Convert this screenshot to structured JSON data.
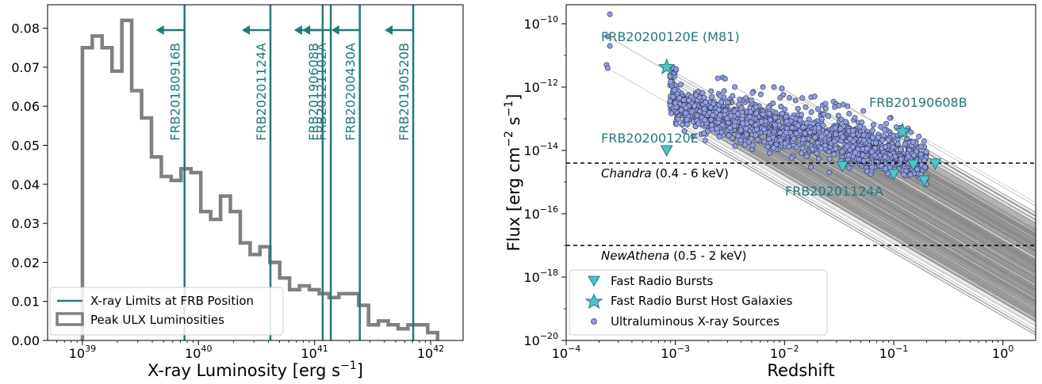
{
  "chart_data": [
    {
      "type": "histogram",
      "xlabel": "X-ray Luminosity [erg s",
      "xlabel_sup": "−1",
      "xlabel_end": "]",
      "xscale": "log",
      "xlim_log10": [
        38.7,
        42.28
      ],
      "ylim": [
        0,
        0.086
      ],
      "xticks": [
        {
          "log": 39,
          "base": "10",
          "exp": "39"
        },
        {
          "log": 40,
          "base": "10",
          "exp": "40"
        },
        {
          "log": 41,
          "base": "10",
          "exp": "41"
        },
        {
          "log": 42,
          "base": "10",
          "exp": "42"
        }
      ],
      "yticks": [
        "0.00",
        "0.01",
        "0.02",
        "0.03",
        "0.04",
        "0.05",
        "0.06",
        "0.07",
        "0.08"
      ],
      "ytick_values": [
        0,
        0.01,
        0.02,
        0.03,
        0.04,
        0.05,
        0.06,
        0.07,
        0.08
      ],
      "histogram": {
        "name": "Peak ULX Luminosities",
        "bin_edges_log10": [
          39.0,
          39.085,
          39.17,
          39.255,
          39.34,
          39.425,
          39.51,
          39.595,
          39.68,
          39.765,
          39.85,
          39.935,
          40.02,
          40.105,
          40.19,
          40.275,
          40.36,
          40.445,
          40.53,
          40.615,
          40.7,
          40.785,
          40.87,
          40.955,
          41.04,
          41.125,
          41.21,
          41.295,
          41.38,
          41.465,
          41.55,
          41.635,
          41.72,
          41.805,
          41.89,
          41.975
        ],
        "counts": [
          0.075,
          0.078,
          0.075,
          0.069,
          0.082,
          0.064,
          0.057,
          0.047,
          0.042,
          0.041,
          0.044,
          0.043,
          0.033,
          0.031,
          0.037,
          0.033,
          0.025,
          0.022,
          0.024,
          0.02,
          0.016,
          0.013,
          0.014,
          0.013,
          0.012,
          0.011,
          0.012,
          0.012,
          0.009,
          0.004,
          0.005,
          0.004,
          0.003,
          0.004,
          0.004,
          0.002
        ],
        "color": "#808080"
      },
      "frb_limits": [
        {
          "name": "FRB20180916B",
          "log": 39.88
        },
        {
          "name": "FRB20201124A",
          "log": 40.62
        },
        {
          "name": "FRB20190608B",
          "log": 41.07
        },
        {
          "name": "FRB20121102A",
          "log": 41.14
        },
        {
          "name": "FRB20200430A",
          "log": 41.39
        },
        {
          "name": "FRB20190520B",
          "log": 41.85
        }
      ],
      "frb_color": "#1f7a7a",
      "legend": {
        "position": "lower-left",
        "entries": [
          "X-ray Limits at FRB Position",
          "Peak ULX Luminosities"
        ]
      }
    },
    {
      "type": "scatter",
      "xlabel": "Redshift",
      "ylabel": "Flux [erg cm",
      "ylabel_sup1": "−2",
      "ylabel_mid": " s",
      "ylabel_sup2": "−1",
      "ylabel_end": "]",
      "xscale": "log",
      "yscale": "log",
      "xlim_log10": [
        -4,
        0.3
      ],
      "ylim_log10": [
        -20,
        -9.4
      ],
      "xticks": [
        {
          "log": -4,
          "base": "10",
          "exp": "−4"
        },
        {
          "log": -3,
          "base": "10",
          "exp": "−3"
        },
        {
          "log": -2,
          "base": "10",
          "exp": "−2"
        },
        {
          "log": -1,
          "base": "10",
          "exp": "−1"
        },
        {
          "log": 0,
          "base": "10",
          "exp": "0"
        }
      ],
      "yticks": [
        {
          "log": -20,
          "base": "10",
          "exp": "−20"
        },
        {
          "log": -18,
          "base": "10",
          "exp": "−18"
        },
        {
          "log": -16,
          "base": "10",
          "exp": "−16"
        },
        {
          "log": -14,
          "base": "10",
          "exp": "−14"
        },
        {
          "log": -12,
          "base": "10",
          "exp": "−12"
        },
        {
          "log": -10,
          "base": "10",
          "exp": "−10"
        }
      ],
      "sensitivity_lines": [
        {
          "name": "Chandra",
          "range": " (0.4 -  6 keV)",
          "log_flux": -14.4
        },
        {
          "name": "NewAthena",
          "range": " (0.5 - 2 keV)",
          "log_flux": -17.0
        }
      ],
      "frb_upper_limits": [
        {
          "log_z": -3.08,
          "log_flux": -14.0
        },
        {
          "log_z": -1.47,
          "log_flux": -14.5
        },
        {
          "log_z": -1.0,
          "log_flux": -14.75
        },
        {
          "log_z": -0.82,
          "log_flux": -14.45
        },
        {
          "log_z": -0.72,
          "log_flux": -14.95
        },
        {
          "log_z": -0.62,
          "log_flux": -14.42
        }
      ],
      "host_galaxies": [
        {
          "log_z": -3.08,
          "log_flux": -11.37
        },
        {
          "log_z": -0.92,
          "log_flux": -13.4
        }
      ],
      "annotations": [
        {
          "text": "FRB20200120E (M81)"
        },
        {
          "text": "FRB20190608B"
        },
        {
          "text": "FRB20200120E"
        },
        {
          "text": "FRB20201124A"
        }
      ],
      "ulx_color": "#8f9ddf",
      "frb_color": "#4fc4c8",
      "legend": {
        "position": "lower-left",
        "entries": [
          "Fast Radio Bursts",
          "Fast Radio Burst Host Galaxies",
          "Ultraluminous X-ray Sources"
        ]
      }
    }
  ]
}
